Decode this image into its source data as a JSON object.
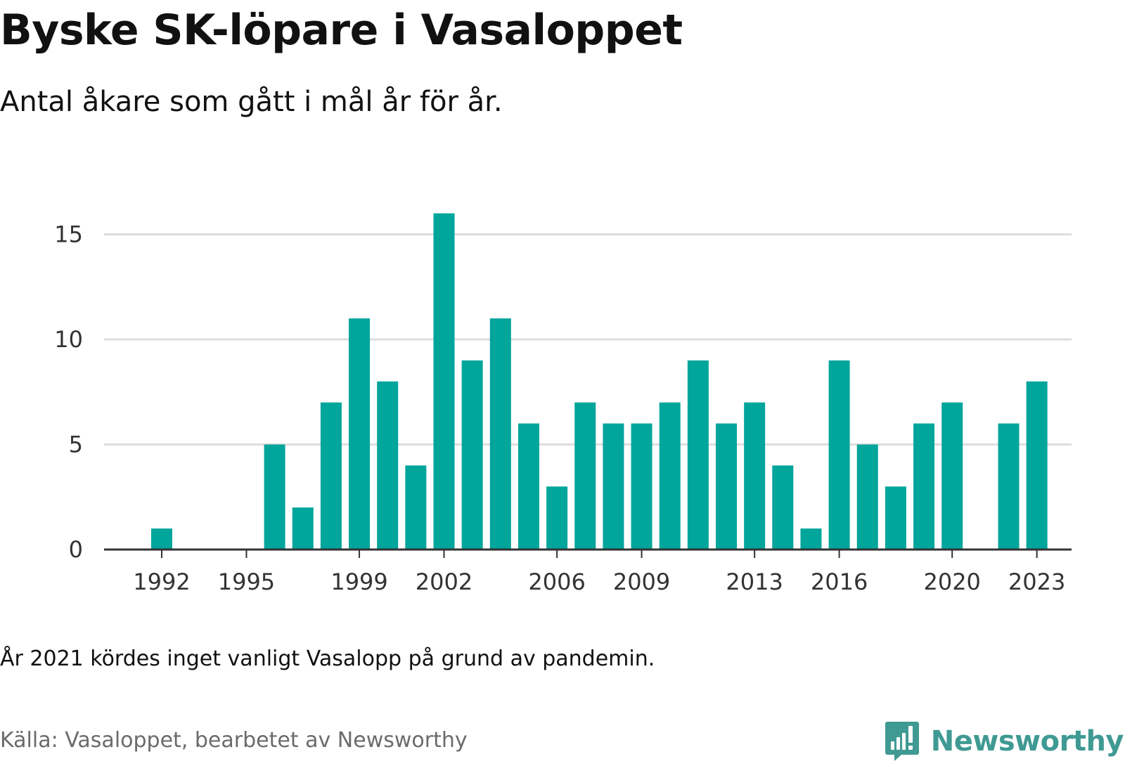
{
  "header": {
    "title": "Byske SK-löpare i Vasaloppet",
    "subtitle": "Antal åkare som gått i mål år för år."
  },
  "footer": {
    "note": "År 2021 kördes inget vanligt Vasalopp på grund av pandemin.",
    "source": "Källa: Vasaloppet, bearbetet av Newsworthy",
    "brand": "Newsworthy",
    "brand_icon": "newsworthy-logo-icon"
  },
  "colors": {
    "bar": "#00a59b",
    "gridline": "#dddddd",
    "axis": "#333333",
    "brand": "#3f9a93"
  },
  "chart_data": {
    "type": "bar",
    "title": "Byske SK-löpare i Vasaloppet",
    "subtitle": "Antal åkare som gått i mål år för år.",
    "xlabel": "",
    "ylabel": "",
    "x": [
      1992,
      1993,
      1994,
      1995,
      1996,
      1997,
      1998,
      1999,
      2000,
      2001,
      2002,
      2003,
      2004,
      2005,
      2006,
      2007,
      2008,
      2009,
      2010,
      2011,
      2012,
      2013,
      2014,
      2015,
      2016,
      2017,
      2018,
      2019,
      2020,
      2021,
      2022,
      2023
    ],
    "values": [
      1,
      0,
      0,
      0,
      5,
      2,
      7,
      11,
      8,
      4,
      16,
      9,
      11,
      6,
      3,
      7,
      6,
      6,
      7,
      9,
      6,
      7,
      4,
      1,
      9,
      5,
      3,
      6,
      7,
      0,
      6,
      8
    ],
    "x_ticks": [
      1992,
      1995,
      1999,
      2002,
      2006,
      2009,
      2013,
      2016,
      2020,
      2023
    ],
    "y_ticks": [
      0,
      5,
      10,
      15
    ],
    "ylim": [
      0,
      16
    ],
    "grid": true
  }
}
